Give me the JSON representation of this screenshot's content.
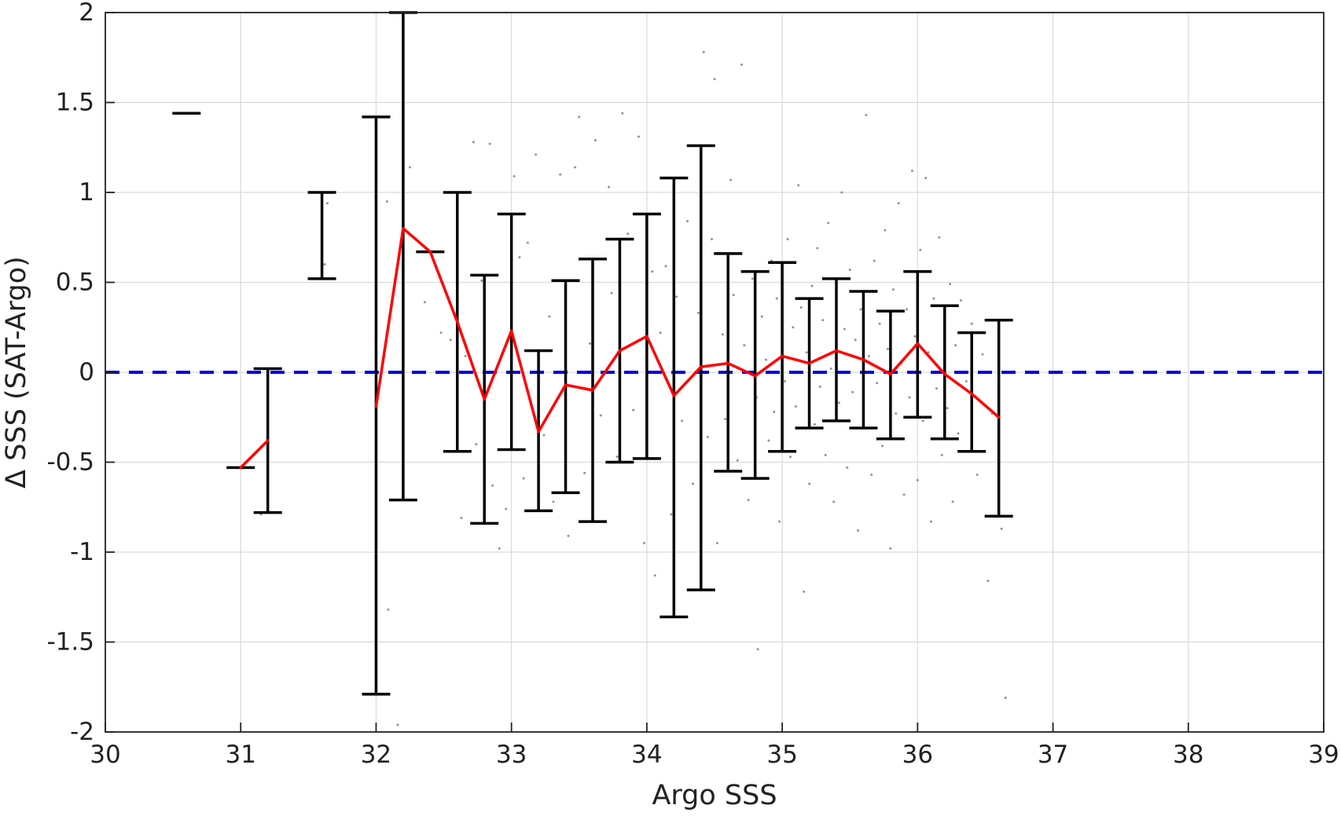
{
  "chart_data": {
    "type": "scatter",
    "title": "",
    "xlabel": "Argo SSS",
    "ylabel": "Δ SSS (SAT-Argo)",
    "xlim": [
      30,
      39
    ],
    "ylim": [
      -2,
      2
    ],
    "grid": true,
    "x_ticks": [
      30,
      31,
      32,
      33,
      34,
      35,
      36,
      37,
      38,
      39
    ],
    "y_ticks": [
      2,
      1.5,
      1,
      0.5,
      0,
      -0.5,
      -1,
      -1.5,
      -2
    ],
    "y_tick_labels": [
      "2",
      "1.5",
      "1",
      "0.5",
      "0",
      "-0.5",
      "-1",
      "-1.5",
      "-2"
    ],
    "colors": {
      "scatter": "#808080",
      "mean_line": "#ff0000",
      "error_bars": "#000000",
      "zero_line": "#0000dd",
      "grid": "#d9d9d9",
      "axis": "#222222"
    },
    "reference_line": {
      "y": 0,
      "style": "dashed"
    },
    "binned_stats": [
      {
        "x": 30.6,
        "mean": 1.44,
        "lower": 1.44,
        "upper": 1.44
      },
      {
        "x": 31.0,
        "mean": -0.53,
        "lower": -0.53,
        "upper": -0.53
      },
      {
        "x": 31.2,
        "mean": -0.38,
        "lower": -0.78,
        "upper": 0.02
      },
      {
        "x": 31.6,
        "mean": null,
        "lower": 0.52,
        "upper": 1.0
      },
      {
        "x": 32.0,
        "mean": -0.19,
        "lower": -1.79,
        "upper": 1.42
      },
      {
        "x": 32.2,
        "mean": 0.8,
        "lower": -0.71,
        "upper": 2.0
      },
      {
        "x": 32.4,
        "mean": 0.67,
        "lower": 0.67,
        "upper": 0.67
      },
      {
        "x": 32.6,
        "mean": 0.28,
        "lower": -0.44,
        "upper": 1.0
      },
      {
        "x": 32.8,
        "mean": -0.15,
        "lower": -0.84,
        "upper": 0.54
      },
      {
        "x": 33.0,
        "mean": 0.23,
        "lower": -0.43,
        "upper": 0.88
      },
      {
        "x": 33.2,
        "mean": -0.33,
        "lower": -0.77,
        "upper": 0.12
      },
      {
        "x": 33.4,
        "mean": -0.07,
        "lower": -0.67,
        "upper": 0.51
      },
      {
        "x": 33.6,
        "mean": -0.1,
        "lower": -0.83,
        "upper": 0.63
      },
      {
        "x": 33.8,
        "mean": 0.12,
        "lower": -0.5,
        "upper": 0.74
      },
      {
        "x": 34.0,
        "mean": 0.2,
        "lower": -0.48,
        "upper": 0.88
      },
      {
        "x": 34.2,
        "mean": -0.13,
        "lower": -1.36,
        "upper": 1.08
      },
      {
        "x": 34.4,
        "mean": 0.03,
        "lower": -1.21,
        "upper": 1.26
      },
      {
        "x": 34.6,
        "mean": 0.05,
        "lower": -0.55,
        "upper": 0.66
      },
      {
        "x": 34.8,
        "mean": -0.02,
        "lower": -0.59,
        "upper": 0.56
      },
      {
        "x": 35.0,
        "mean": 0.09,
        "lower": -0.44,
        "upper": 0.61
      },
      {
        "x": 35.2,
        "mean": 0.05,
        "lower": -0.31,
        "upper": 0.41
      },
      {
        "x": 35.4,
        "mean": 0.12,
        "lower": -0.27,
        "upper": 0.52
      },
      {
        "x": 35.6,
        "mean": 0.07,
        "lower": -0.31,
        "upper": 0.45
      },
      {
        "x": 35.8,
        "mean": -0.01,
        "lower": -0.37,
        "upper": 0.34
      },
      {
        "x": 36.0,
        "mean": 0.16,
        "lower": -0.25,
        "upper": 0.56
      },
      {
        "x": 36.2,
        "mean": -0.01,
        "lower": -0.37,
        "upper": 0.37
      },
      {
        "x": 36.4,
        "mean": -0.12,
        "lower": -0.44,
        "upper": 0.22
      },
      {
        "x": 36.6,
        "mean": -0.25,
        "lower": -0.8,
        "upper": 0.29
      }
    ],
    "mean_line_segments": [
      [
        [
          31.0,
          -0.53
        ],
        [
          31.2,
          -0.38
        ]
      ],
      [
        [
          32.0,
          -0.19
        ],
        [
          32.2,
          0.8
        ],
        [
          32.4,
          0.67
        ],
        [
          32.6,
          0.28
        ],
        [
          32.8,
          -0.15
        ],
        [
          33.0,
          0.23
        ],
        [
          33.2,
          -0.33
        ],
        [
          33.4,
          -0.07
        ],
        [
          33.6,
          -0.1
        ],
        [
          33.8,
          0.12
        ],
        [
          34.0,
          0.2
        ],
        [
          34.2,
          -0.13
        ],
        [
          34.4,
          0.03
        ],
        [
          34.6,
          0.05
        ],
        [
          34.8,
          -0.02
        ],
        [
          35.0,
          0.09
        ],
        [
          35.2,
          0.05
        ],
        [
          35.4,
          0.12
        ],
        [
          35.6,
          0.07
        ],
        [
          35.8,
          -0.01
        ],
        [
          36.0,
          0.16
        ],
        [
          36.2,
          -0.01
        ],
        [
          36.4,
          -0.12
        ],
        [
          36.6,
          -0.25
        ]
      ]
    ],
    "scatter_points": [
      [
        31.15,
        -0.79
      ],
      [
        31.62,
        0.6
      ],
      [
        31.64,
        0.94
      ],
      [
        32.08,
        0.95
      ],
      [
        32.09,
        -1.32
      ],
      [
        32.16,
        -1.96
      ],
      [
        32.2,
        1.31
      ],
      [
        32.25,
        1.14
      ],
      [
        32.36,
        0.39
      ],
      [
        32.48,
        0.22
      ],
      [
        32.55,
        0.18
      ],
      [
        32.63,
        -0.81
      ],
      [
        32.66,
        0.09
      ],
      [
        32.72,
        1.28
      ],
      [
        32.74,
        -0.4
      ],
      [
        32.78,
        0.51
      ],
      [
        32.84,
        1.27
      ],
      [
        32.86,
        -0.63
      ],
      [
        32.91,
        -0.98
      ],
      [
        32.96,
        -0.76
      ],
      [
        33.02,
        1.09
      ],
      [
        33.06,
        0.64
      ],
      [
        33.09,
        -0.59
      ],
      [
        33.12,
        0.72
      ],
      [
        33.18,
        1.21
      ],
      [
        33.24,
        -0.35
      ],
      [
        33.28,
        0.31
      ],
      [
        33.31,
        -0.72
      ],
      [
        33.36,
        1.1
      ],
      [
        33.42,
        -0.91
      ],
      [
        33.47,
        1.14
      ],
      [
        33.5,
        1.42
      ],
      [
        33.54,
        -0.56
      ],
      [
        33.58,
        0.16
      ],
      [
        33.62,
        1.29
      ],
      [
        33.66,
        -0.24
      ],
      [
        33.72,
        1.03
      ],
      [
        33.74,
        0.44
      ],
      [
        33.78,
        -0.47
      ],
      [
        33.82,
        1.44
      ],
      [
        33.86,
        0.77
      ],
      [
        33.9,
        -0.21
      ],
      [
        33.94,
        1.31
      ],
      [
        33.98,
        -0.95
      ],
      [
        34.04,
        0.56
      ],
      [
        34.06,
        -1.13
      ],
      [
        34.1,
        0.22
      ],
      [
        34.14,
        0.59
      ],
      [
        34.18,
        -0.79
      ],
      [
        34.22,
        0.42
      ],
      [
        34.26,
        -0.27
      ],
      [
        34.3,
        0.84
      ],
      [
        34.34,
        -0.62
      ],
      [
        34.38,
        0.33
      ],
      [
        34.42,
        1.78
      ],
      [
        34.45,
        -0.36
      ],
      [
        34.48,
        0.74
      ],
      [
        34.5,
        1.63
      ],
      [
        34.52,
        -0.95
      ],
      [
        34.56,
        0.21
      ],
      [
        34.58,
        -0.26
      ],
      [
        34.62,
        1.07
      ],
      [
        34.64,
        0.43
      ],
      [
        34.67,
        -0.49
      ],
      [
        34.7,
        1.71
      ],
      [
        34.72,
        0.15
      ],
      [
        34.75,
        -0.71
      ],
      [
        34.78,
        0.52
      ],
      [
        34.81,
        -0.14
      ],
      [
        34.82,
        -1.54
      ],
      [
        34.85,
        0.31
      ],
      [
        34.88,
        0.07
      ],
      [
        34.9,
        -0.38
      ],
      [
        34.92,
        0.62
      ],
      [
        34.94,
        -0.22
      ],
      [
        34.96,
        0.41
      ],
      [
        34.98,
        -0.83
      ],
      [
        35.0,
        0.18
      ],
      [
        35.02,
        -0.05
      ],
      [
        35.04,
        0.74
      ],
      [
        35.06,
        -0.47
      ],
      [
        35.08,
        0.25
      ],
      [
        35.1,
        -0.19
      ],
      [
        35.12,
        1.04
      ],
      [
        35.14,
        0.36
      ],
      [
        35.16,
        -1.22
      ],
      [
        35.18,
        0.11
      ],
      [
        35.2,
        -0.62
      ],
      [
        35.22,
        0.48
      ],
      [
        35.24,
        -0.29
      ],
      [
        35.26,
        0.69
      ],
      [
        35.28,
        -0.08
      ],
      [
        35.3,
        0.29
      ],
      [
        35.32,
        -0.46
      ],
      [
        35.34,
        0.83
      ],
      [
        35.36,
        0.02
      ],
      [
        35.38,
        -0.72
      ],
      [
        35.4,
        0.41
      ],
      [
        35.42,
        -0.17
      ],
      [
        35.44,
        1.0
      ],
      [
        35.46,
        0.24
      ],
      [
        35.48,
        -0.53
      ],
      [
        35.5,
        0.57
      ],
      [
        35.52,
        -0.11
      ],
      [
        35.54,
        0.18
      ],
      [
        35.56,
        -0.88
      ],
      [
        35.58,
        0.35
      ],
      [
        35.6,
        -0.31
      ],
      [
        35.62,
        1.43
      ],
      [
        35.64,
        0.09
      ],
      [
        35.66,
        -0.57
      ],
      [
        35.68,
        0.62
      ],
      [
        35.7,
        -0.06
      ],
      [
        35.72,
        0.27
      ],
      [
        35.74,
        -0.41
      ],
      [
        35.76,
        0.79
      ],
      [
        35.78,
        0.13
      ],
      [
        35.8,
        -0.98
      ],
      [
        35.82,
        0.46
      ],
      [
        35.84,
        -0.23
      ],
      [
        35.86,
        0.94
      ],
      [
        35.88,
        0.05
      ],
      [
        35.9,
        -0.68
      ],
      [
        35.92,
        0.35
      ],
      [
        35.94,
        -0.14
      ],
      [
        35.96,
        1.12
      ],
      [
        35.98,
        0.2
      ],
      [
        36.0,
        -0.6
      ],
      [
        36.02,
        0.68
      ],
      [
        36.04,
        -0.27
      ],
      [
        36.06,
        1.08
      ],
      [
        36.08,
        0.11
      ],
      [
        36.1,
        -0.83
      ],
      [
        36.12,
        0.41
      ],
      [
        36.14,
        -0.09
      ],
      [
        36.16,
        0.75
      ],
      [
        36.18,
        -0.46
      ],
      [
        36.2,
        0.23
      ],
      [
        36.22,
        -0.2
      ],
      [
        36.24,
        0.49
      ],
      [
        36.26,
        -0.72
      ],
      [
        36.28,
        0.15
      ],
      [
        36.3,
        -0.34
      ],
      [
        36.32,
        0.4
      ],
      [
        36.36,
        -0.05
      ],
      [
        36.4,
        0.27
      ],
      [
        36.44,
        -0.57
      ],
      [
        36.48,
        0.1
      ],
      [
        36.52,
        -1.16
      ],
      [
        36.55,
        -0.23
      ],
      [
        36.6,
        0.03
      ],
      [
        36.62,
        -0.87
      ],
      [
        36.65,
        -1.81
      ]
    ]
  }
}
